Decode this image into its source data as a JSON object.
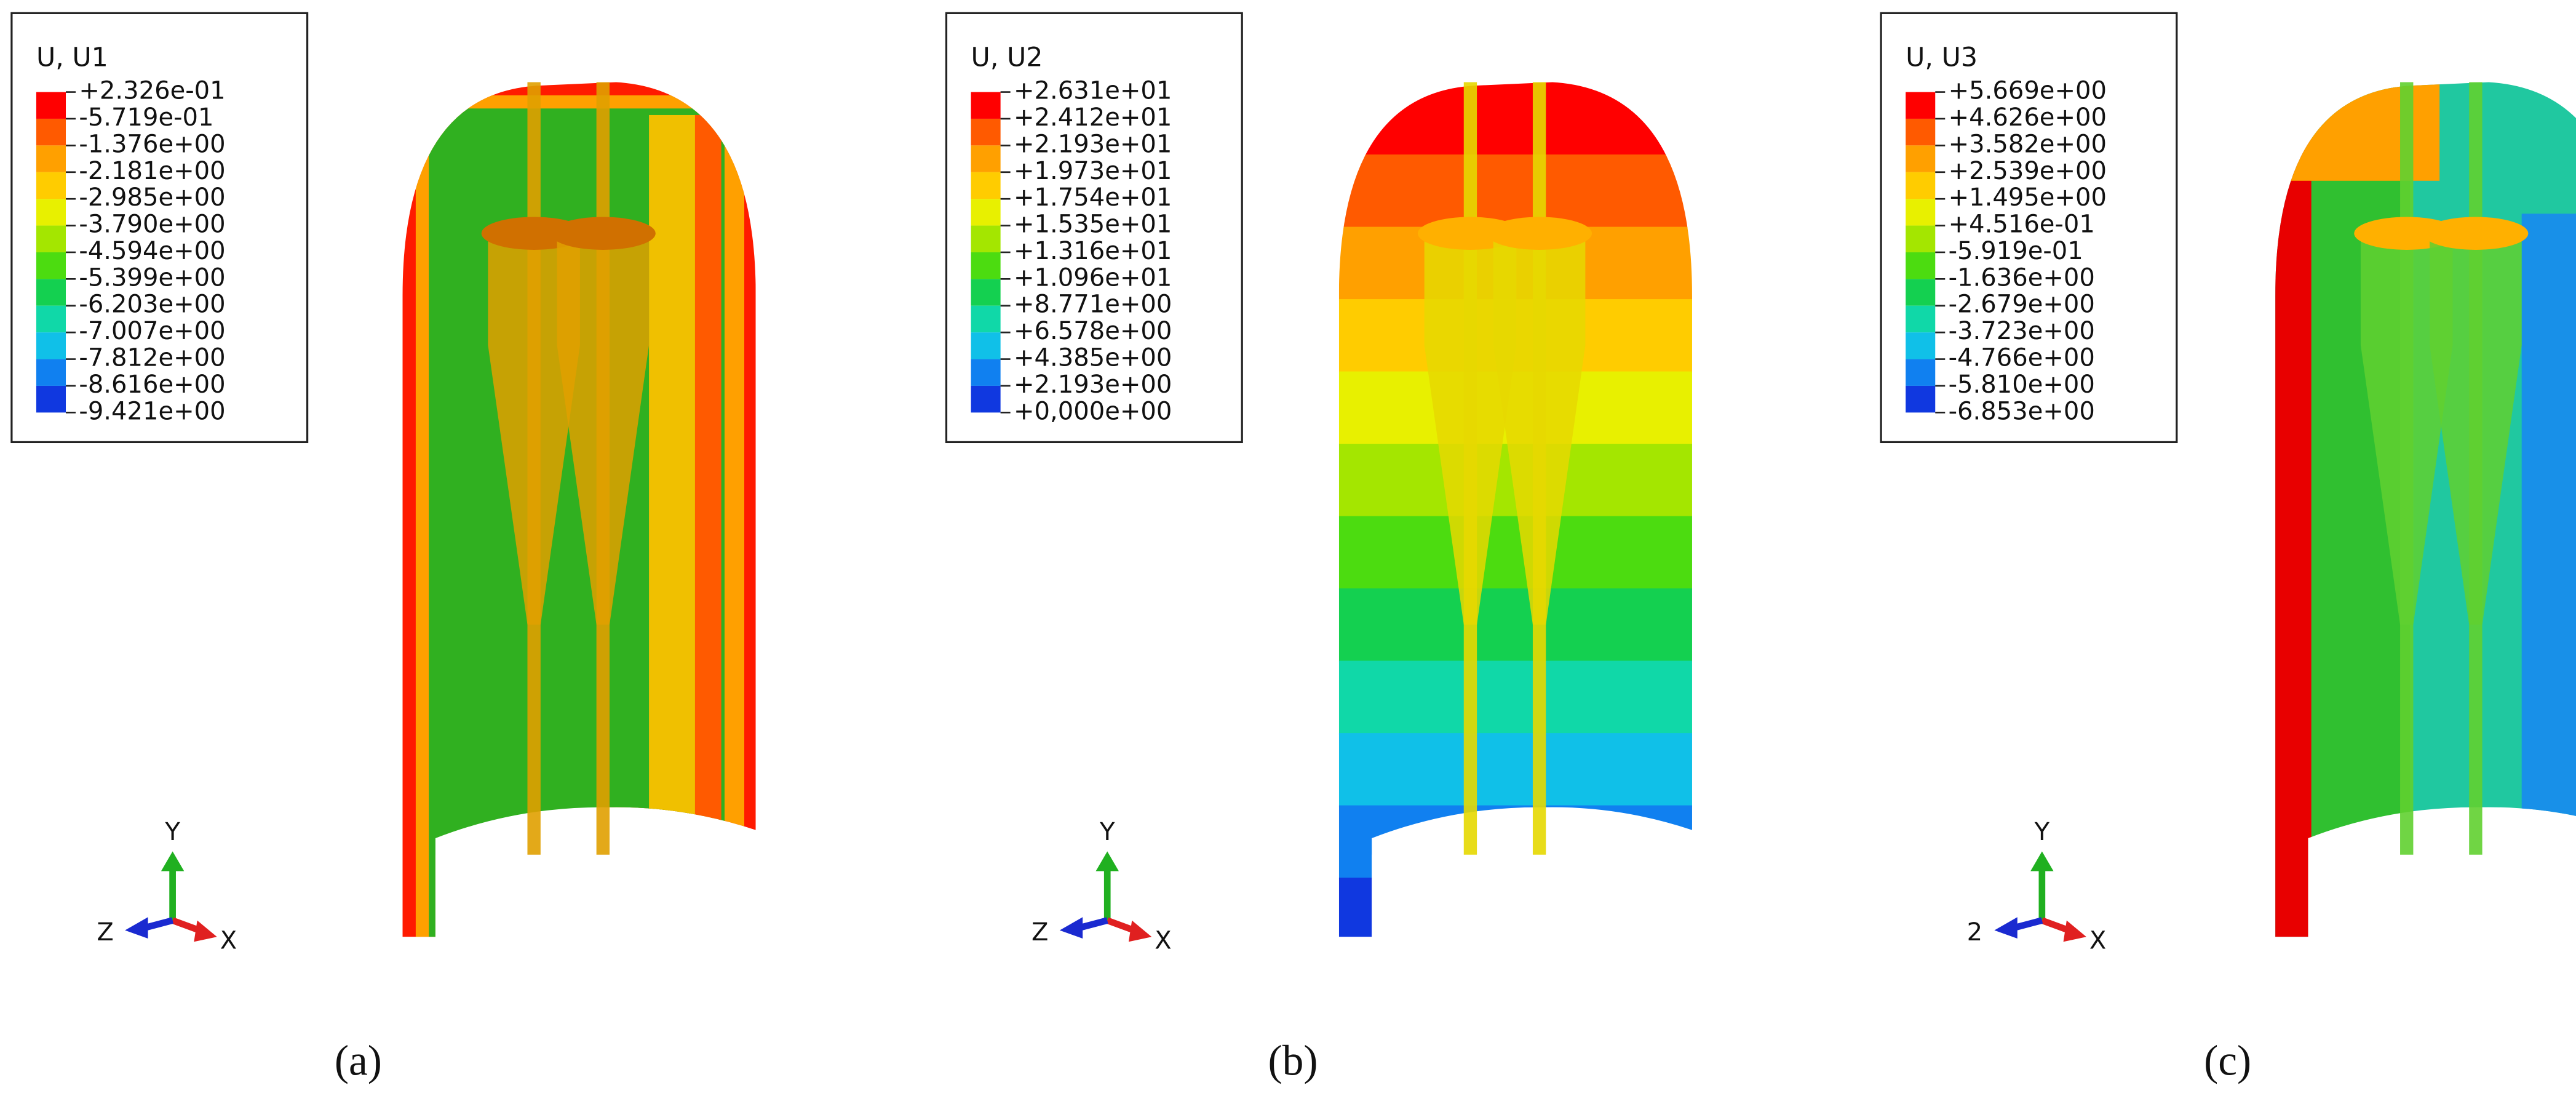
{
  "panels": [
    {
      "legend_title": "U, U1",
      "legend_labels": [
        "+2.326e-01",
        "-5.719e-01",
        "-1.376e+00",
        "-2.181e+00",
        "-2.985e+00",
        "-3.790e+00",
        "-4.594e+00",
        "-5.399e+00",
        "-6.203e+00",
        "-7.007e+00",
        "-7.812e+00",
        "-8.616e+00",
        "-9.421e+00"
      ],
      "triad": {
        "y": "Y",
        "z": "Z",
        "x": "X"
      },
      "caption": "(a)"
    },
    {
      "legend_title": "U, U2",
      "legend_labels": [
        "+2.631e+01",
        "+2.412e+01",
        "+2.193e+01",
        "+1.973e+01",
        "+1.754e+01",
        "+1.535e+01",
        "+1.316e+01",
        "+1.096e+01",
        "+8.771e+00",
        "+6.578e+00",
        "+4.385e+00",
        "+2.193e+00",
        "+0,000e+00"
      ],
      "triad": {
        "y": "Y",
        "z": "Z",
        "x": "X"
      },
      "caption": "(b)"
    },
    {
      "legend_title": "U, U3",
      "legend_labels": [
        "+5.669e+00",
        "+4.626e+00",
        "+3.582e+00",
        "+2.539e+00",
        "+1.495e+00",
        "+4.516e-01",
        "-5.919e-01",
        "-1.636e+00",
        "-2.679e+00",
        "-3.723e+00",
        "-4.766e+00",
        "-5.810e+00",
        "-6.853e+00"
      ],
      "triad": {
        "y": "Y",
        "z": "2",
        "x": "X"
      },
      "caption": "(c)"
    }
  ]
}
